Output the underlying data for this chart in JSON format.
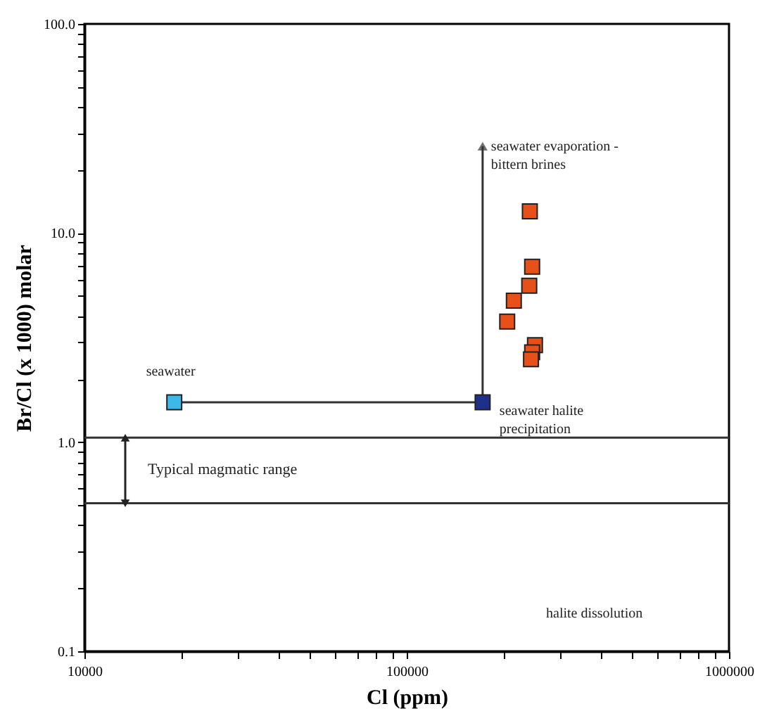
{
  "chart_data": {
    "type": "scatter",
    "xlabel": "Cl (ppm)",
    "ylabel": "Br/Cl (x 1000) molar",
    "log": "xy",
    "xlim": [
      10000,
      1000000
    ],
    "ylim": [
      0.1,
      100
    ],
    "xticks": [
      10000,
      {
        "value": 20000,
        "label": null
      },
      {
        "value": 30000,
        "label": null
      },
      {
        "value": 40000,
        "label": null
      },
      {
        "value": 50000,
        "label": null
      },
      {
        "value": 60000,
        "label": null
      },
      {
        "value": 70000,
        "label": null
      },
      {
        "value": 80000,
        "label": null
      },
      {
        "value": 90000,
        "label": null
      },
      100000,
      {
        "value": 200000,
        "label": null
      },
      {
        "value": 300000,
        "label": null
      },
      {
        "value": 400000,
        "label": null
      },
      {
        "value": 500000,
        "label": null
      },
      {
        "value": 600000,
        "label": null
      },
      {
        "value": 700000,
        "label": null
      },
      {
        "value": 800000,
        "label": null
      },
      {
        "value": 900000,
        "label": null
      },
      1000000
    ],
    "yticks": [
      0.1,
      {
        "value": 0.2,
        "label": null
      },
      {
        "value": 0.3,
        "label": null
      },
      {
        "value": 0.4,
        "label": null
      },
      {
        "value": 0.5,
        "label": null
      },
      {
        "value": 0.6,
        "label": null
      },
      {
        "value": 0.7,
        "label": null
      },
      {
        "value": 0.8,
        "label": null
      },
      {
        "value": 0.9,
        "label": null
      },
      {
        "value": 1,
        "label": "1.0"
      },
      {
        "value": 2,
        "label": null
      },
      {
        "value": 3,
        "label": null
      },
      {
        "value": 4,
        "label": null
      },
      {
        "value": 5,
        "label": null
      },
      {
        "value": 6,
        "label": null
      },
      {
        "value": 7,
        "label": null
      },
      {
        "value": 8,
        "label": null
      },
      {
        "value": 9,
        "label": null
      },
      {
        "value": 10,
        "label": "10.0"
      },
      {
        "value": 20,
        "label": null
      },
      {
        "value": 30,
        "label": null
      },
      {
        "value": 40,
        "label": null
      },
      {
        "value": 50,
        "label": null
      },
      {
        "value": 60,
        "label": null
      },
      {
        "value": 70,
        "label": null
      },
      {
        "value": 80,
        "label": null
      },
      {
        "value": 90,
        "label": null
      },
      {
        "value": 100,
        "label": "100.0"
      }
    ],
    "series": [
      {
        "type": "line",
        "color": "#333333",
        "x": [
          19000,
          172000
        ],
        "values": [
          1.55,
          1.55
        ]
      },
      {
        "type": "line",
        "name": "seawater evaporation -\n bittern brines",
        "color": "#333333",
        "x": [
          172000,
          172000
        ],
        "values": [
          1.55,
          26
        ]
      },
      {
        "name": "seawater",
        "marker": "square",
        "color": "#3db8e8",
        "x": [
          19000
        ],
        "values": [
          1.55
        ]
      },
      {
        "name": "seawater halite\nprecipitation",
        "marker": "square",
        "color": "#1f2f8a",
        "x": [
          172000
        ],
        "values": [
          1.55
        ]
      },
      {
        "marker": "square",
        "color": "#e8501a",
        "x": [
          241000,
          245000,
          240000,
          215000,
          205000,
          250000,
          245000,
          243000
        ],
        "values": [
          12.7,
          6.9,
          5.6,
          4.75,
          3.77,
          2.91,
          2.69,
          2.49
        ]
      }
    ],
    "ref_lines": [
      {
        "axis": "y",
        "value": 1.05,
        "color": "#333333"
      },
      {
        "axis": "y",
        "value": 0.51,
        "color": "#333333"
      }
    ],
    "annotations": [
      "Typical magmatic range",
      "halite dissolution"
    ]
  }
}
